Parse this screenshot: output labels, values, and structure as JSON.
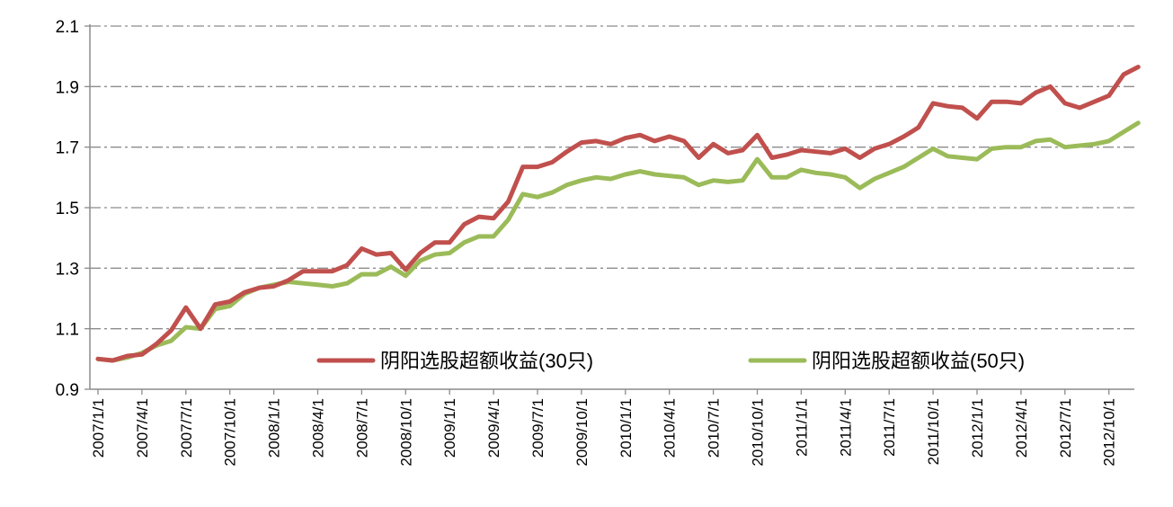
{
  "chart_data": {
    "type": "line",
    "title": "",
    "xlabel": "",
    "ylabel": "",
    "ylim": [
      0.9,
      2.1
    ],
    "yticks": [
      "0.9",
      "1.1",
      "1.3",
      "1.5",
      "1.7",
      "1.9",
      "2.1"
    ],
    "grid": "horizontal dash-dot",
    "legend_placement": "bottom-center inside plot",
    "x": [
      "2007/1/1",
      "2007/2/1",
      "2007/3/1",
      "2007/4/1",
      "2007/5/1",
      "2007/6/1",
      "2007/7/1",
      "2007/8/1",
      "2007/9/1",
      "2007/10/1",
      "2007/11/1",
      "2007/12/1",
      "2008/1/1",
      "2008/2/1",
      "2008/3/1",
      "2008/4/1",
      "2008/5/1",
      "2008/6/1",
      "2008/7/1",
      "2008/8/1",
      "2008/9/1",
      "2008/10/1",
      "2008/11/1",
      "2008/12/1",
      "2009/1/1",
      "2009/2/1",
      "2009/3/1",
      "2009/4/1",
      "2009/5/1",
      "2009/6/1",
      "2009/7/1",
      "2009/8/1",
      "2009/9/1",
      "2009/10/1",
      "2009/11/1",
      "2009/12/1",
      "2010/1/1",
      "2010/2/1",
      "2010/3/1",
      "2010/4/1",
      "2010/5/1",
      "2010/6/1",
      "2010/7/1",
      "2010/8/1",
      "2010/9/1",
      "2010/10/1",
      "2010/11/1",
      "2010/12/1",
      "2011/1/1",
      "2011/2/1",
      "2011/3/1",
      "2011/4/1",
      "2011/5/1",
      "2011/6/1",
      "2011/7/1",
      "2011/8/1",
      "2011/9/1",
      "2011/10/1",
      "2011/11/1",
      "2011/12/1",
      "2012/1/1",
      "2012/2/1",
      "2012/3/1",
      "2012/4/1",
      "2012/5/1",
      "2012/6/1",
      "2012/7/1",
      "2012/8/1",
      "2012/9/1",
      "2012/10/1",
      "2012/11/1",
      "2012/12/1"
    ],
    "xtick_labels": [
      "2007/1/1",
      "2007/4/1",
      "2007/7/1",
      "2007/10/1",
      "2008/1/1",
      "2008/4/1",
      "2008/7/1",
      "2008/10/1",
      "2009/1/1",
      "2009/4/1",
      "2009/7/1",
      "2009/10/1",
      "2010/1/1",
      "2010/4/1",
      "2010/7/1",
      "2010/10/1",
      "2011/1/1",
      "2011/4/1",
      "2011/7/1",
      "2011/10/1",
      "2012/1/1",
      "2012/4/1",
      "2012/7/1",
      "2012/10/1"
    ],
    "series": [
      {
        "name": "阴阳选股超额收益(30只)",
        "color": "#C0504D",
        "values": [
          1.0,
          0.995,
          1.01,
          1.015,
          1.05,
          1.095,
          1.17,
          1.1,
          1.18,
          1.19,
          1.22,
          1.235,
          1.24,
          1.26,
          1.29,
          1.29,
          1.29,
          1.31,
          1.365,
          1.345,
          1.35,
          1.295,
          1.35,
          1.385,
          1.385,
          1.445,
          1.47,
          1.465,
          1.52,
          1.635,
          1.635,
          1.65,
          1.685,
          1.715,
          1.72,
          1.71,
          1.73,
          1.74,
          1.72,
          1.735,
          1.72,
          1.665,
          1.71,
          1.68,
          1.69,
          1.74,
          1.665,
          1.675,
          1.69,
          1.685,
          1.68,
          1.695,
          1.665,
          1.695,
          1.71,
          1.735,
          1.765,
          1.845,
          1.835,
          1.83,
          1.795,
          1.85,
          1.85,
          1.845,
          1.88,
          1.9,
          1.845,
          1.83,
          1.85,
          1.87,
          1.94,
          1.965
        ]
      },
      {
        "name": "阴阳选股超额收益(50只)",
        "color": "#9BBB59",
        "values": [
          1.0,
          0.995,
          1.005,
          1.02,
          1.045,
          1.06,
          1.105,
          1.1,
          1.165,
          1.175,
          1.215,
          1.235,
          1.245,
          1.255,
          1.25,
          1.245,
          1.24,
          1.25,
          1.28,
          1.28,
          1.305,
          1.275,
          1.325,
          1.345,
          1.35,
          1.385,
          1.405,
          1.405,
          1.46,
          1.545,
          1.535,
          1.55,
          1.575,
          1.59,
          1.6,
          1.595,
          1.61,
          1.62,
          1.61,
          1.605,
          1.6,
          1.575,
          1.59,
          1.585,
          1.59,
          1.66,
          1.6,
          1.6,
          1.625,
          1.615,
          1.61,
          1.6,
          1.565,
          1.595,
          1.615,
          1.635,
          1.665,
          1.695,
          1.67,
          1.665,
          1.66,
          1.695,
          1.7,
          1.7,
          1.72,
          1.725,
          1.7,
          1.705,
          1.71,
          1.72,
          1.75,
          1.78
        ]
      }
    ]
  }
}
